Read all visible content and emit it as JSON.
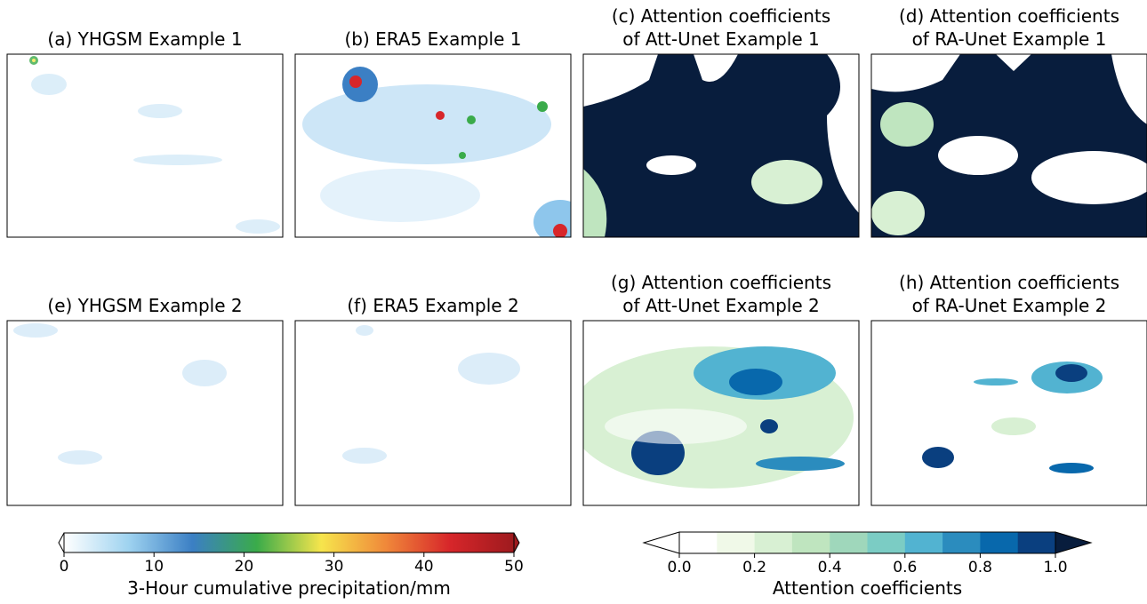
{
  "panels": [
    {
      "title": [
        "(a) YHGSM Example 1"
      ]
    },
    {
      "title": [
        "(b) ERA5 Example 1"
      ]
    },
    {
      "title": [
        "(c) Attention coefficients",
        "of Att-Unet Example 1"
      ]
    },
    {
      "title": [
        "(d) Attention coefficients",
        "of RA-Unet Example 1"
      ]
    },
    {
      "title": [
        "(e) YHGSM Example 2"
      ]
    },
    {
      "title": [
        "(f) ERA5 Example 2"
      ]
    },
    {
      "title": [
        "(g) Attention coefficients",
        "of Att-Unet Example 2"
      ]
    },
    {
      "title": [
        "(h) Attention coefficients",
        "of RA-Unet Example 2"
      ]
    }
  ],
  "colorbars": [
    {
      "label": "3-Hour cumulative precipitation/mm",
      "lim": [
        0,
        50
      ],
      "ticks": [
        0,
        10,
        20,
        30,
        40,
        50
      ],
      "colors": [
        "#ffffff",
        "#9fd3f0",
        "#3b7fc4",
        "#3aab4a",
        "#f6e54c",
        "#f0893a",
        "#d7262a",
        "#9e1a1e"
      ]
    },
    {
      "label": "Attention coefficients",
      "lim": [
        0,
        1
      ],
      "ticks": [
        {
          "value": 0,
          "label": "0.0"
        },
        {
          "value": 0.2,
          "label": "0.2"
        },
        {
          "value": 0.4,
          "label": "0.4"
        },
        {
          "value": 0.6,
          "label": "0.6"
        },
        {
          "value": 0.8,
          "label": "0.8"
        },
        {
          "value": 1,
          "label": "1.0"
        }
      ],
      "colors": [
        "#ffffff",
        "#f0f9e8",
        "#d8f0d3",
        "#bfe5bf",
        "#9fd7bb",
        "#7bccc4",
        "#52b3d1",
        "#2b8cbe",
        "#0868ac",
        "#0a3f7f",
        "#081d3d"
      ]
    }
  ]
}
